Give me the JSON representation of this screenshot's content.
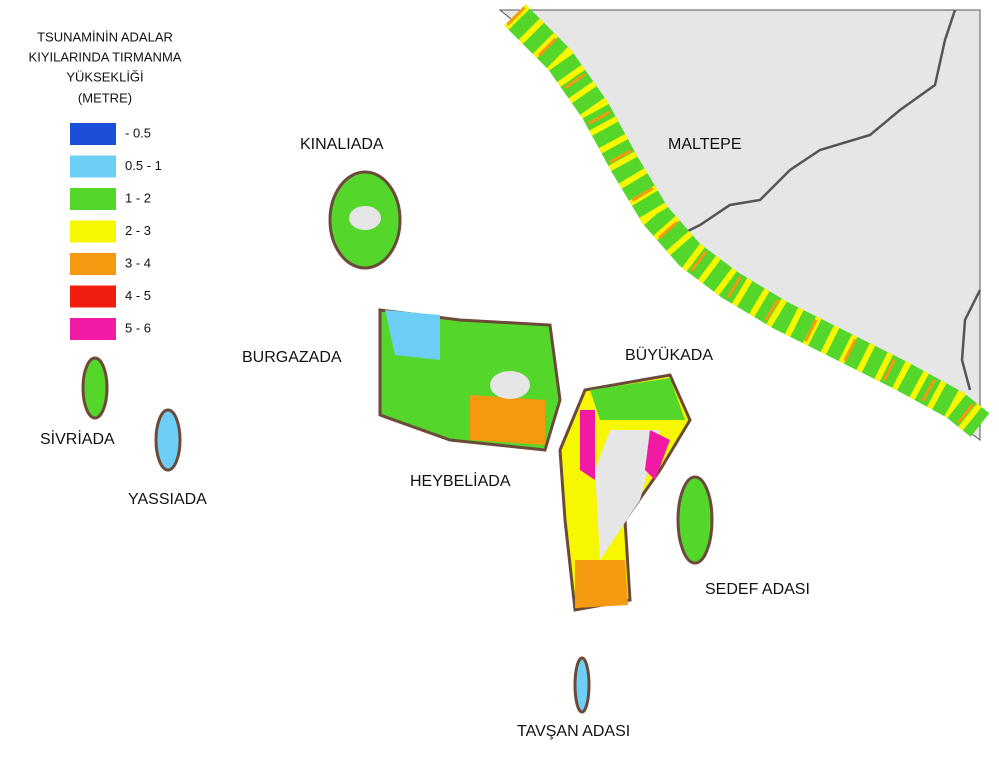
{
  "legend": {
    "title": [
      "TSUNAMİNİN ADALAR",
      "KIYILARINDA TIRMANMA",
      "YÜKSEKLİĞİ",
      "(METRE)"
    ],
    "items": [
      {
        "label": "- 0.5",
        "color": "#1c4fd8"
      },
      {
        "label": "0.5 - 1",
        "color": "#6dcff6"
      },
      {
        "label": "1 - 2",
        "color": "#55d62b"
      },
      {
        "label": "2 - 3",
        "color": "#f7f700"
      },
      {
        "label": "3 - 4",
        "color": "#f59a10"
      },
      {
        "label": "4 - 5",
        "color": "#f01c0e"
      },
      {
        "label": "5 - 6",
        "color": "#f01aa4"
      }
    ]
  },
  "places": [
    "KINALIADA",
    "MALTEPE",
    "BURGAZADA",
    "BÜYÜKADA",
    "SİVRİADA",
    "YASSIADA",
    "HEYBELİADA",
    "SEDEF ADASI",
    "TAVŞAN ADASI"
  ]
}
